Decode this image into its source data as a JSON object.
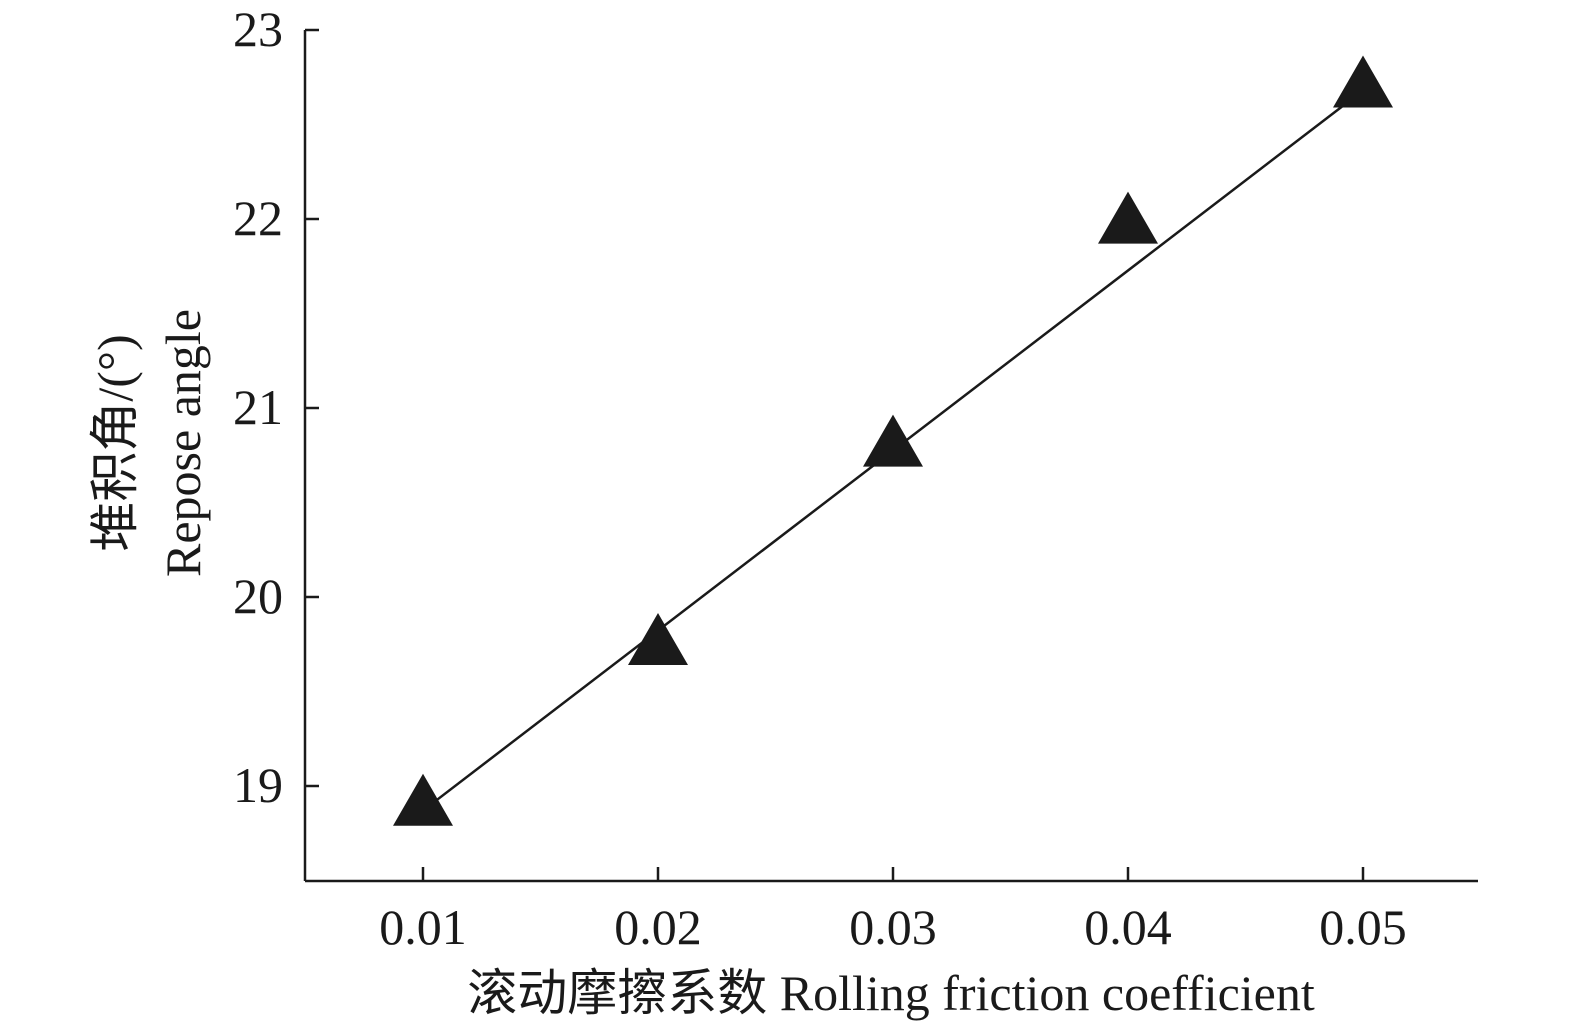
{
  "chart_data": {
    "type": "scatter",
    "title": "",
    "xlabel": "滚动摩擦系数 Rolling friction coefficient",
    "ylabel_line1": "堆积角/(°)",
    "ylabel_line2": "Repose angle",
    "xlim": [
      0.005,
      0.055
    ],
    "ylim": [
      18.5,
      23
    ],
    "x_ticks": [
      "0.01",
      "0.02",
      "0.03",
      "0.04",
      "0.05"
    ],
    "y_ticks": [
      "19",
      "20",
      "21",
      "22",
      "23"
    ],
    "grid": false,
    "legend": "none",
    "marker": "triangle",
    "colors": {
      "marker": "#1a1a1a",
      "line": "#1a1a1a",
      "axis": "#1a1a1a"
    },
    "series": [
      {
        "x": [
          0.01,
          0.02,
          0.03,
          0.04,
          0.05
        ],
        "y": [
          18.9,
          19.75,
          20.8,
          21.98,
          22.7
        ]
      }
    ],
    "trendline": {
      "x": [
        0.01,
        0.05
      ],
      "y": [
        18.87,
        22.68
      ]
    }
  }
}
